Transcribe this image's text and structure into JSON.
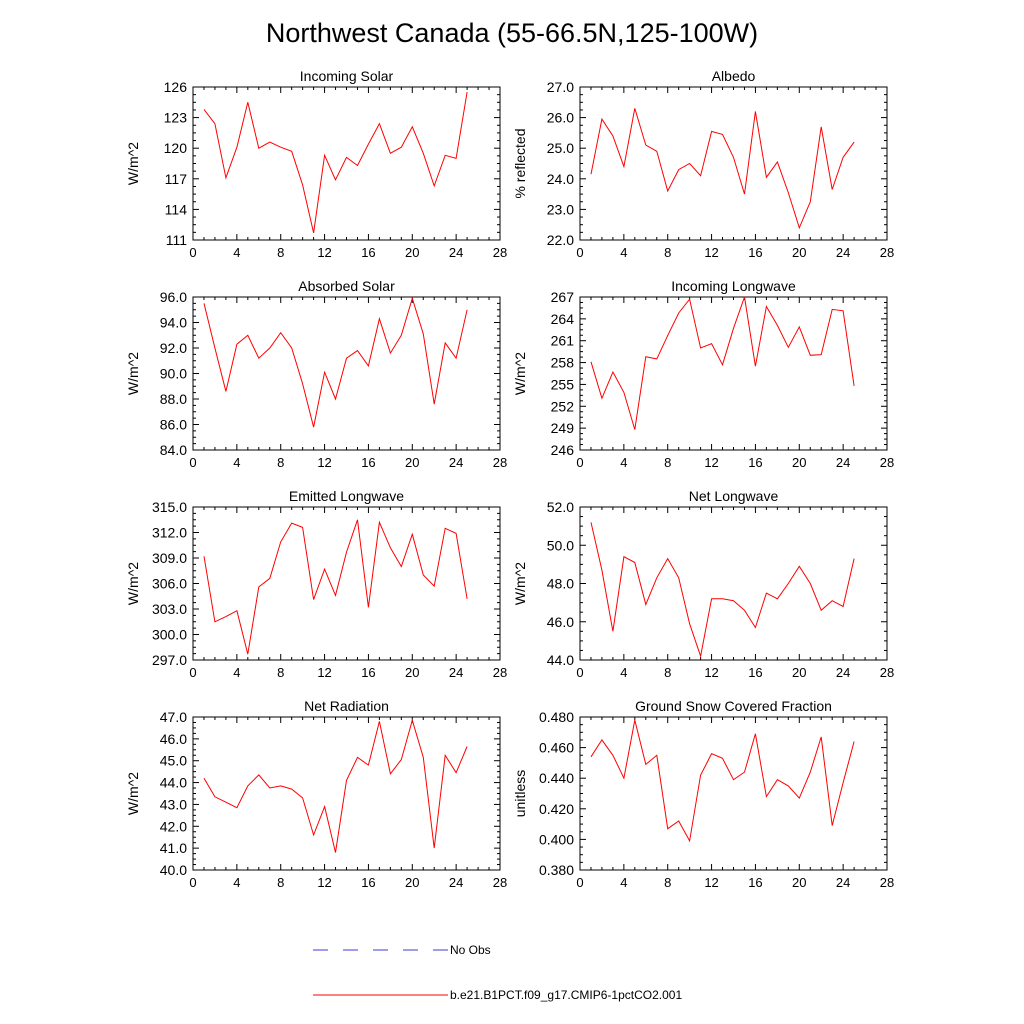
{
  "title": "Northwest Canada (55-66.5N,125-100W)",
  "legend": {
    "items": [
      {
        "label": "No Obs",
        "color": "#3b3bd6",
        "style": "dashed"
      },
      {
        "label": "b.e21.B1PCT.f09_g17.CMIP6-1pctCO2.001",
        "color": "#ff0000",
        "style": "solid"
      }
    ]
  },
  "chart_data": [
    {
      "type": "line",
      "title": "Incoming Solar",
      "ylabel": "W/m^2",
      "xlim": [
        0,
        28
      ],
      "xticks": [
        "0",
        "4",
        "8",
        "12",
        "16",
        "20",
        "24",
        "28"
      ],
      "ylim": [
        111,
        126
      ],
      "yticks": [
        "111",
        "114",
        "117",
        "120",
        "123",
        "126"
      ],
      "series": [
        {
          "name": "b.e21.B1PCT.f09_g17.CMIP6-1pctCO2.001",
          "color": "#ff0000",
          "x": [
            1,
            2,
            3,
            4,
            5,
            6,
            7,
            8,
            9,
            10,
            11,
            12,
            13,
            14,
            15,
            16,
            17,
            18,
            19,
            20,
            21,
            22,
            23,
            24,
            25
          ],
          "y": [
            123.8,
            122.4,
            117.1,
            120.1,
            124.5,
            120.0,
            120.6,
            120.1,
            119.7,
            116.4,
            111.7,
            119.3,
            116.9,
            119.1,
            118.3,
            120.4,
            122.4,
            119.5,
            120.1,
            122.1,
            119.5,
            116.3,
            119.3,
            119.0,
            125.5
          ]
        }
      ]
    },
    {
      "type": "line",
      "title": "Albedo",
      "ylabel": "% reflected",
      "xlim": [
        0,
        28
      ],
      "xticks": [
        "0",
        "4",
        "8",
        "12",
        "16",
        "20",
        "24",
        "28"
      ],
      "ylim": [
        22,
        27
      ],
      "yticks": [
        "22.0",
        "23.0",
        "24.0",
        "25.0",
        "26.0",
        "27.0"
      ],
      "series": [
        {
          "name": "b.e21.B1PCT.f09_g17.CMIP6-1pctCO2.001",
          "color": "#ff0000",
          "x": [
            1,
            2,
            3,
            4,
            5,
            6,
            7,
            8,
            9,
            10,
            11,
            12,
            13,
            14,
            15,
            16,
            17,
            18,
            19,
            20,
            21,
            22,
            23,
            24,
            25
          ],
          "y": [
            24.15,
            25.95,
            25.4,
            24.4,
            26.3,
            25.1,
            24.9,
            23.6,
            24.3,
            24.5,
            24.1,
            25.55,
            25.45,
            24.7,
            23.5,
            26.2,
            24.05,
            24.55,
            23.55,
            22.4,
            23.25,
            25.7,
            23.65,
            24.7,
            25.2
          ]
        }
      ]
    },
    {
      "type": "line",
      "title": "Absorbed Solar",
      "ylabel": "W/m^2",
      "xlim": [
        0,
        28
      ],
      "xticks": [
        "0",
        "4",
        "8",
        "12",
        "16",
        "20",
        "24",
        "28"
      ],
      "ylim": [
        84,
        96
      ],
      "yticks": [
        "84.0",
        "86.0",
        "88.0",
        "90.0",
        "92.0",
        "94.0",
        "96.0"
      ],
      "series": [
        {
          "name": "b.e21.B1PCT.f09_g17.CMIP6-1pctCO2.001",
          "color": "#ff0000",
          "x": [
            1,
            2,
            3,
            4,
            5,
            6,
            7,
            8,
            9,
            10,
            11,
            12,
            13,
            14,
            15,
            16,
            17,
            18,
            19,
            20,
            21,
            22,
            23,
            24,
            25
          ],
          "y": [
            95.5,
            92.0,
            88.6,
            92.3,
            93.0,
            91.2,
            92.0,
            93.2,
            92.0,
            89.2,
            85.8,
            90.1,
            88.0,
            91.2,
            91.8,
            90.6,
            94.3,
            91.6,
            93.0,
            95.9,
            93.1,
            87.6,
            92.4,
            91.2,
            95.0
          ]
        }
      ]
    },
    {
      "type": "line",
      "title": "Incoming Longwave",
      "ylabel": "W/m^2",
      "xlim": [
        0,
        28
      ],
      "xticks": [
        "0",
        "4",
        "8",
        "12",
        "16",
        "20",
        "24",
        "28"
      ],
      "ylim": [
        246,
        267
      ],
      "yticks": [
        "246",
        "249",
        "252",
        "255",
        "258",
        "261",
        "264",
        "267"
      ],
      "series": [
        {
          "name": "b.e21.B1PCT.f09_g17.CMIP6-1pctCO2.001",
          "color": "#ff0000",
          "x": [
            1,
            2,
            3,
            4,
            5,
            6,
            7,
            8,
            9,
            10,
            11,
            12,
            13,
            14,
            15,
            16,
            17,
            18,
            19,
            20,
            21,
            22,
            23,
            24,
            25
          ],
          "y": [
            258.1,
            253.1,
            256.7,
            253.9,
            248.8,
            258.8,
            258.5,
            261.7,
            264.8,
            266.7,
            260.0,
            260.6,
            257.7,
            262.7,
            267.0,
            257.5,
            265.7,
            263.1,
            260.1,
            262.9,
            259.0,
            259.1,
            265.3,
            265.1,
            254.8
          ]
        }
      ]
    },
    {
      "type": "line",
      "title": "Emitted Longwave",
      "ylabel": "W/m^2",
      "xlim": [
        0,
        28
      ],
      "xticks": [
        "0",
        "4",
        "8",
        "12",
        "16",
        "20",
        "24",
        "28"
      ],
      "ylim": [
        297,
        315
      ],
      "yticks": [
        "297.0",
        "300.0",
        "303.0",
        "306.0",
        "309.0",
        "312.0",
        "315.0"
      ],
      "series": [
        {
          "name": "b.e21.B1PCT.f09_g17.CMIP6-1pctCO2.001",
          "color": "#ff0000",
          "x": [
            1,
            2,
            3,
            4,
            5,
            6,
            7,
            8,
            9,
            10,
            11,
            12,
            13,
            14,
            15,
            16,
            17,
            18,
            19,
            20,
            21,
            22,
            23,
            24,
            25
          ],
          "y": [
            309.2,
            301.5,
            302.1,
            302.8,
            297.7,
            305.6,
            306.6,
            310.9,
            313.1,
            312.6,
            304.1,
            307.7,
            304.6,
            309.7,
            313.5,
            303.2,
            313.2,
            310.2,
            308.0,
            311.8,
            307.0,
            305.7,
            312.5,
            311.9,
            304.2
          ]
        }
      ]
    },
    {
      "type": "line",
      "title": "Net Longwave",
      "ylabel": "W/m^2",
      "xlim": [
        0,
        28
      ],
      "xticks": [
        "0",
        "4",
        "8",
        "12",
        "16",
        "20",
        "24",
        "28"
      ],
      "ylim": [
        44,
        52
      ],
      "yticks": [
        "44.0",
        "46.0",
        "48.0",
        "50.0",
        "52.0"
      ],
      "series": [
        {
          "name": "b.e21.B1PCT.f09_g17.CMIP6-1pctCO2.001",
          "color": "#ff0000",
          "x": [
            1,
            2,
            3,
            4,
            5,
            6,
            7,
            8,
            9,
            10,
            11,
            12,
            13,
            14,
            15,
            16,
            17,
            18,
            19,
            20,
            21,
            22,
            23,
            24,
            25
          ],
          "y": [
            51.2,
            48.7,
            45.5,
            49.4,
            49.1,
            46.9,
            48.3,
            49.3,
            48.3,
            45.9,
            44.2,
            47.2,
            47.2,
            47.1,
            46.6,
            45.7,
            47.5,
            47.2,
            48.0,
            48.9,
            48.0,
            46.6,
            47.1,
            46.8,
            49.3
          ]
        }
      ]
    },
    {
      "type": "line",
      "title": "Net Radiation",
      "ylabel": "W/m^2",
      "xlim": [
        0,
        28
      ],
      "xticks": [
        "0",
        "4",
        "8",
        "12",
        "16",
        "20",
        "24",
        "28"
      ],
      "ylim": [
        40,
        47
      ],
      "yticks": [
        "40.0",
        "41.0",
        "42.0",
        "43.0",
        "44.0",
        "45.0",
        "46.0",
        "47.0"
      ],
      "series": [
        {
          "name": "b.e21.B1PCT.f09_g17.CMIP6-1pctCO2.001",
          "color": "#ff0000",
          "x": [
            1,
            2,
            3,
            4,
            5,
            6,
            7,
            8,
            9,
            10,
            11,
            12,
            13,
            14,
            15,
            16,
            17,
            18,
            19,
            20,
            21,
            22,
            23,
            24,
            25
          ],
          "y": [
            44.2,
            43.35,
            43.1,
            42.85,
            43.85,
            44.35,
            43.75,
            43.85,
            43.7,
            43.3,
            41.6,
            42.9,
            40.8,
            44.1,
            45.15,
            44.8,
            46.8,
            44.4,
            45.05,
            46.85,
            45.15,
            41.0,
            45.25,
            44.45,
            45.65
          ]
        }
      ]
    },
    {
      "type": "line",
      "title": "Ground Snow Covered Fraction",
      "ylabel": "unitless",
      "xlim": [
        0,
        28
      ],
      "xticks": [
        "0",
        "4",
        "8",
        "12",
        "16",
        "20",
        "24",
        "28"
      ],
      "ylim": [
        0.38,
        0.48
      ],
      "yticks": [
        "0.380",
        "0.400",
        "0.420",
        "0.440",
        "0.460",
        "0.480"
      ],
      "series": [
        {
          "name": "b.e21.B1PCT.f09_g17.CMIP6-1pctCO2.001",
          "color": "#ff0000",
          "x": [
            1,
            2,
            3,
            4,
            5,
            6,
            7,
            8,
            9,
            10,
            11,
            12,
            13,
            14,
            15,
            16,
            17,
            18,
            19,
            20,
            21,
            22,
            23,
            24,
            25
          ],
          "y": [
            0.454,
            0.465,
            0.455,
            0.44,
            0.478,
            0.449,
            0.455,
            0.407,
            0.412,
            0.399,
            0.442,
            0.456,
            0.453,
            0.439,
            0.444,
            0.469,
            0.428,
            0.439,
            0.435,
            0.427,
            0.444,
            0.467,
            0.409,
            0.437,
            0.464
          ]
        }
      ]
    }
  ]
}
